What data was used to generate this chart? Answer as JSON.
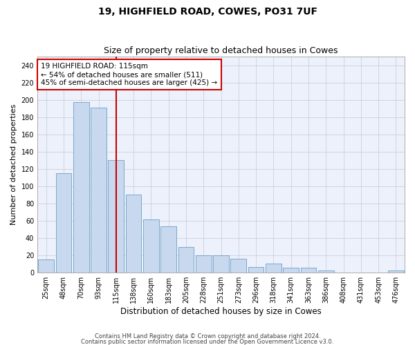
{
  "title1": "19, HIGHFIELD ROAD, COWES, PO31 7UF",
  "title2": "Size of property relative to detached houses in Cowes",
  "xlabel": "Distribution of detached houses by size in Cowes",
  "ylabel": "Number of detached properties",
  "categories": [
    "25sqm",
    "48sqm",
    "70sqm",
    "93sqm",
    "115sqm",
    "138sqm",
    "160sqm",
    "183sqm",
    "205sqm",
    "228sqm",
    "251sqm",
    "273sqm",
    "296sqm",
    "318sqm",
    "341sqm",
    "363sqm",
    "386sqm",
    "408sqm",
    "431sqm",
    "453sqm",
    "476sqm"
  ],
  "values": [
    15,
    115,
    197,
    191,
    130,
    90,
    61,
    53,
    29,
    20,
    20,
    16,
    6,
    10,
    5,
    5,
    2,
    0,
    0,
    0,
    2
  ],
  "bar_color": "#c8d8ee",
  "bar_edge_color": "#7aa8cc",
  "vline_x": 4,
  "vline_color": "#cc0000",
  "annotation_text": "19 HIGHFIELD ROAD: 115sqm\n← 54% of detached houses are smaller (511)\n45% of semi-detached houses are larger (425) →",
  "annotation_box_color": "#ffffff",
  "annotation_box_edge": "#cc0000",
  "ylim": [
    0,
    250
  ],
  "yticks": [
    0,
    20,
    40,
    60,
    80,
    100,
    120,
    140,
    160,
    180,
    200,
    220,
    240
  ],
  "footer1": "Contains HM Land Registry data © Crown copyright and database right 2024.",
  "footer2": "Contains public sector information licensed under the Open Government Licence v3.0.",
  "bg_color": "#edf1fb",
  "grid_color": "#c8d0e0",
  "title_fontsize": 10,
  "subtitle_fontsize": 9,
  "tick_fontsize": 7,
  "ylabel_fontsize": 8,
  "xlabel_fontsize": 8.5,
  "footer_fontsize": 6,
  "ann_fontsize": 7.5
}
